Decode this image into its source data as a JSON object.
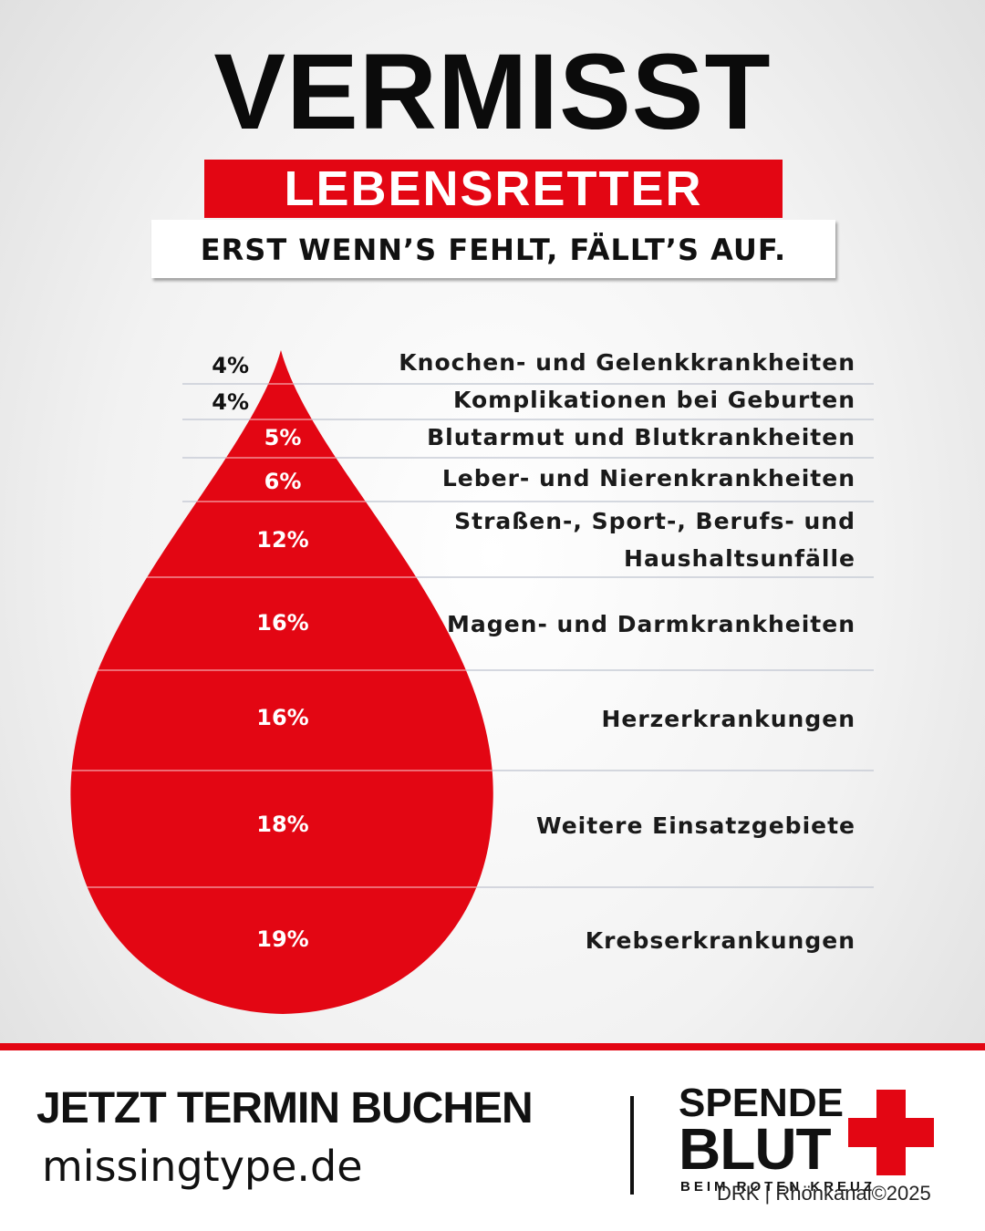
{
  "header": {
    "title": "VERMISST",
    "subtitle": "LEBENSRETTER",
    "tagline": "ERST WENN’S FEHLT, FÄLLT’S AUF."
  },
  "colors": {
    "brand_red": "#e30613",
    "text_dark": "#111111",
    "separator": "#c8ccd6"
  },
  "chart_data": {
    "type": "table",
    "rows": [
      {
        "value": 4,
        "value_label": "4%",
        "label": [
          "Knochen- und Gelenkkrankheiten"
        ]
      },
      {
        "value": 4,
        "value_label": "4%",
        "label": [
          "Komplikationen bei Geburten"
        ]
      },
      {
        "value": 5,
        "value_label": "5%",
        "label": [
          "Blutarmut und Blutkrankheiten"
        ]
      },
      {
        "value": 6,
        "value_label": "6%",
        "label": [
          "Leber- und Nierenkrankheiten"
        ]
      },
      {
        "value": 12,
        "value_label": "12%",
        "label": [
          "Straßen-, Sport-, Berufs- und",
          "Haushaltsunfälle"
        ]
      },
      {
        "value": 16,
        "value_label": "16%",
        "label": [
          "Magen- und Darmkrankheiten"
        ]
      },
      {
        "value": 16,
        "value_label": "16%",
        "label": [
          "Herzerkrankungen"
        ]
      },
      {
        "value": 18,
        "value_label": "18%",
        "label": [
          "Weitere Einsatzgebiete"
        ]
      },
      {
        "value": 19,
        "value_label": "19%",
        "label": [
          "Krebserkrankungen"
        ]
      }
    ]
  },
  "footer": {
    "cta": "JETZT TERMIN BUCHEN",
    "url": "missingtype.de",
    "logo_line1": "SPENDE",
    "logo_line2": "BLUT",
    "logo_line3": "BEIM ROTEN KREUZ",
    "credit": "DRK | Rhönkanal©2025"
  }
}
